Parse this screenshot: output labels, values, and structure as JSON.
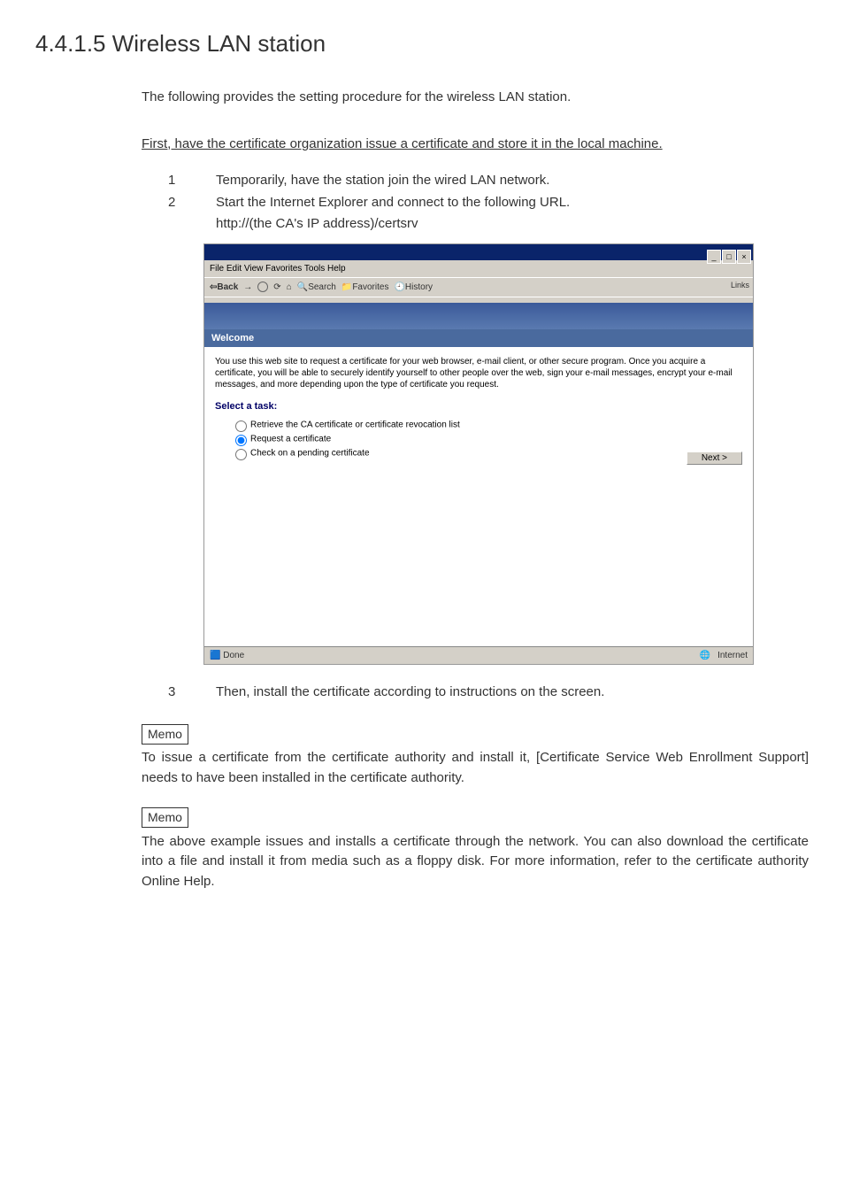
{
  "heading": "4.4.1.5 Wireless LAN station",
  "intro": "The following provides the setting procedure for the wireless LAN station.",
  "subhead": "First, have the certificate organization issue a certificate and store it in the local machine.",
  "steps12": [
    {
      "num": "1",
      "text": "Temporarily, have the station join the wired LAN network."
    },
    {
      "num": "2",
      "text": "Start the Internet Explorer and connect to the following URL."
    }
  ],
  "step2_sub": "http://(the CA's IP address)/certsrv",
  "step3": {
    "num": "3",
    "text": "Then, install the certificate according to instructions on the screen."
  },
  "memo1_label": "Memo",
  "memo1_text": "To issue a certificate from the certificate authority and install it, [Certificate Service Web Enrollment Support] needs to have been installed in the certificate authority.",
  "memo2_label": "Memo",
  "memo2_text": "The above example issues and installs a certificate through the network.  You can also download the certificate into a file and install it from media such as a floppy disk.  For more information, refer to the certificate authority Online Help.",
  "ie": {
    "menu": "File   Edit   View   Favorites   Tools   Help",
    "toolbar_items": [
      "Back",
      "Search",
      "Favorites",
      "History"
    ],
    "links_label": "Links",
    "welcome": "Welcome",
    "body": "You use this web site to request a certificate for your web browser, e-mail client, or other secure program. Once you acquire a certificate, you will be able to securely identify yourself to other people over the web, sign your e-mail messages, encrypt your e-mail messages, and more depending upon the type of certificate you request.",
    "task_header": "Select a task:",
    "opts": [
      "Retrieve the CA certificate or certificate revocation list",
      "Request a certificate",
      "Check on a pending certificate"
    ],
    "next": "Next >",
    "status_left": "Done",
    "status_right": "Internet"
  }
}
